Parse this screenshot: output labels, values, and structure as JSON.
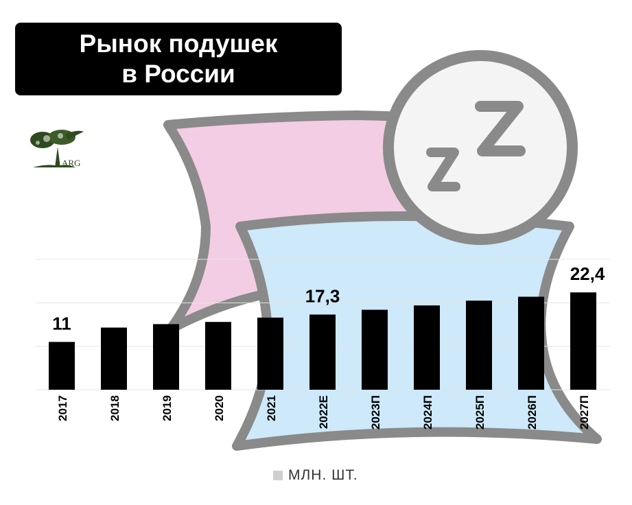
{
  "title": {
    "line1": "Рынок подушек",
    "line2": "в России"
  },
  "logo": {
    "text": "ARG",
    "icon": "tree-icon",
    "color": "#2f4a1f"
  },
  "colors": {
    "bar": "#000000",
    "pink_pillow": "#f3cde3",
    "blue_pillow": "#cde9fa",
    "outline": "#8a8a8a",
    "grid": "#e4e4e4"
  },
  "chart_data": {
    "type": "bar",
    "title": "Рынок подушек в России",
    "categories": [
      "2017",
      "2018",
      "2019",
      "2020",
      "2021",
      "2022E",
      "2023П",
      "2024П",
      "2025П",
      "2026П",
      "2027П"
    ],
    "series": [
      {
        "name": "МЛН. ШТ.",
        "values": [
          11,
          14.3,
          15.1,
          15.6,
          16.6,
          17.3,
          18.4,
          19.4,
          20.5,
          21.4,
          22.4
        ]
      }
    ],
    "data_labels": [
      {
        "category": "2017",
        "text": "11"
      },
      {
        "category": "2022E",
        "text": "17,3"
      },
      {
        "category": "2027П",
        "text": "22,4"
      }
    ],
    "ylim": [
      0,
      30
    ],
    "grid": true,
    "legend_position": "bottom",
    "xlabel": "",
    "ylabel": ""
  },
  "legend": {
    "label": "МЛН. ШТ."
  }
}
